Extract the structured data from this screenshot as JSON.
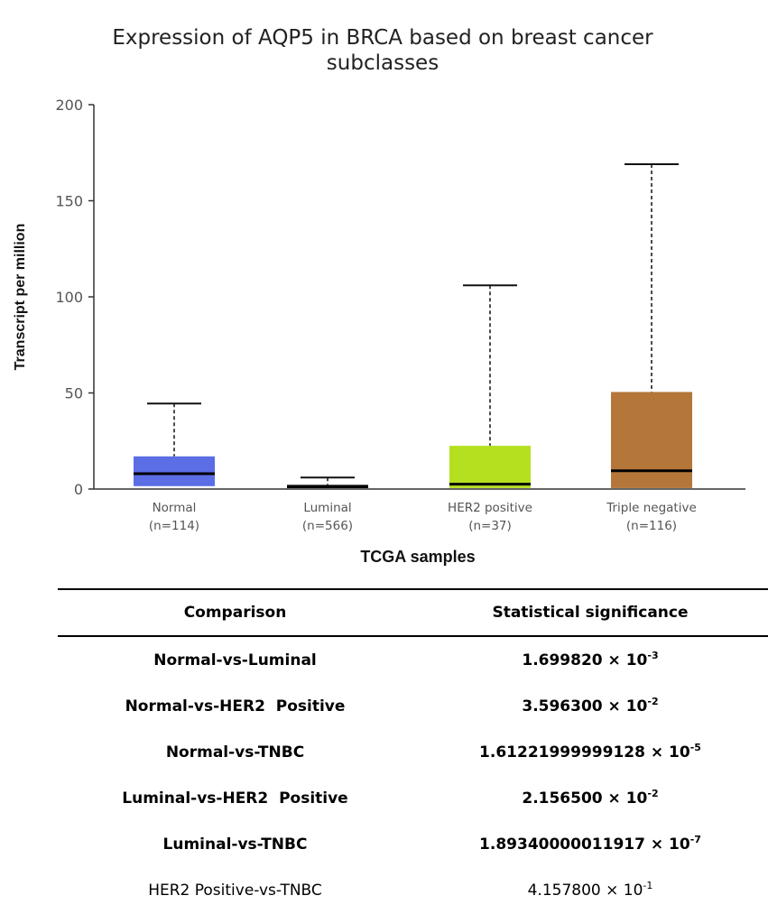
{
  "chart_data": {
    "type": "box",
    "title": "Expression of AQP5 in BRCA based on breast cancer subclasses",
    "title_lines": [
      "Expression of AQP5 in BRCA based on breast cancer",
      "subclasses"
    ],
    "xlabel": "TCGA samples",
    "ylabel": "Transcript per million",
    "ylim": [
      0,
      200
    ],
    "yticks": [
      0,
      50,
      100,
      150,
      200
    ],
    "grid": false,
    "categories": [
      {
        "name": "Normal",
        "n_label": "(n=114)",
        "color": "#5b6ee6",
        "whisker_low": 0,
        "q1": 1.5,
        "median": 8,
        "q3": 17,
        "whisker_high": 44.5
      },
      {
        "name": "Luminal",
        "n_label": "(n=566)",
        "color": "#1a1a1a",
        "whisker_low": 0,
        "q1": 0.5,
        "median": 1.2,
        "q3": 2.2,
        "whisker_high": 6
      },
      {
        "name": "HER2 positive",
        "n_label": "(n=37)",
        "color": "#b5e020",
        "whisker_low": 0,
        "q1": 0.5,
        "median": 2.5,
        "q3": 22.5,
        "whisker_high": 106
      },
      {
        "name": "Triple negative",
        "n_label": "(n=116)",
        "color": "#b5763a",
        "whisker_low": 0,
        "q1": 0.5,
        "median": 9.5,
        "q3": 50.5,
        "whisker_high": 169
      }
    ]
  },
  "table": {
    "headers": [
      "Comparison",
      "Statistical significance"
    ],
    "rows": [
      {
        "comparison": "Normal-vs-Luminal",
        "mantissa": "1.699820",
        "times": "×",
        "base": "10",
        "exponent": "-3",
        "bold": true
      },
      {
        "comparison": "Normal-vs-HER2  Positive",
        "mantissa": "3.596300",
        "times": "×",
        "base": "10",
        "exponent": "-2",
        "bold": true
      },
      {
        "comparison": "Normal-vs-TNBC",
        "mantissa": "1.61221999999128",
        "times": "×",
        "base": "10",
        "exponent": "-5",
        "bold": true
      },
      {
        "comparison": "Luminal-vs-HER2  Positive",
        "mantissa": "2.156500",
        "times": "×",
        "base": "10",
        "exponent": "-2",
        "bold": true
      },
      {
        "comparison": "Luminal-vs-TNBC",
        "mantissa": "1.89340000011917",
        "times": "×",
        "base": "10",
        "exponent": "-7",
        "bold": true
      },
      {
        "comparison": "HER2 Positive-vs-TNBC",
        "mantissa": "4.157800",
        "times": "×",
        "base": "10",
        "exponent": "-1",
        "bold": false
      }
    ]
  }
}
